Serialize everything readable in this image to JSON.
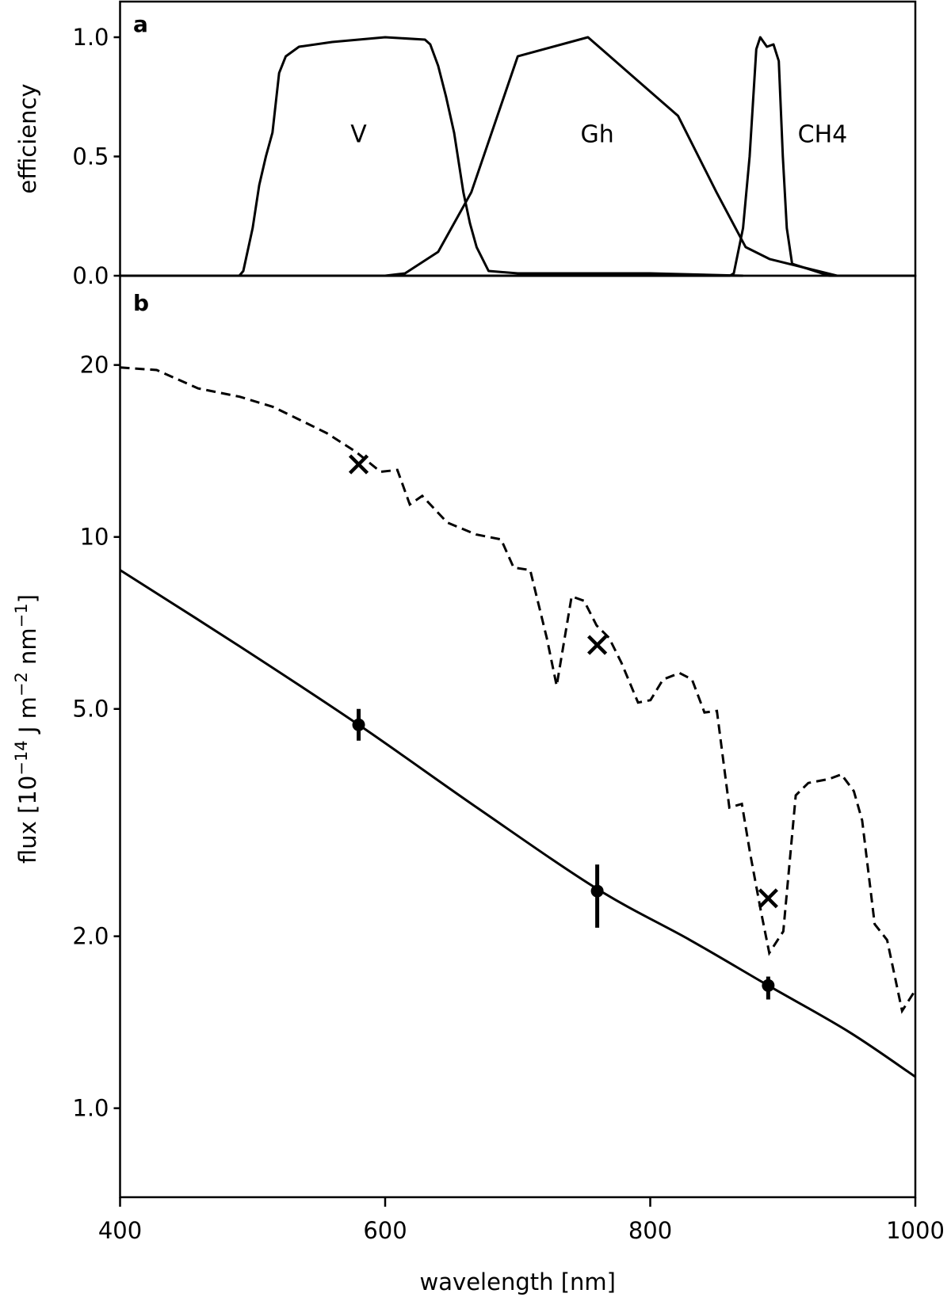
{
  "chart_data": [
    {
      "panel": "a",
      "type": "line",
      "xlabel": "",
      "ylabel": "efficiency",
      "xlim": [
        400,
        1000
      ],
      "ylim": [
        0,
        1.15
      ],
      "yticks": [
        "0.0",
        "0.5",
        "1.0"
      ],
      "ytick_values": [
        0,
        0.5,
        1.0
      ],
      "grid": false,
      "series": [
        {
          "name": "V",
          "x": [
            400,
            490,
            493,
            500,
            505,
            510,
            515,
            520,
            525,
            535,
            560,
            600,
            630,
            634,
            640,
            646,
            652,
            659,
            664,
            669,
            678,
            700,
            800,
            870
          ],
          "y": [
            0,
            0,
            0.02,
            0.2,
            0.38,
            0.5,
            0.6,
            0.85,
            0.92,
            0.96,
            0.98,
            1.0,
            0.99,
            0.97,
            0.88,
            0.75,
            0.6,
            0.35,
            0.22,
            0.12,
            0.02,
            0.01,
            0.01,
            0
          ]
        },
        {
          "name": "Gh",
          "x": [
            400,
            600,
            615,
            640,
            665,
            700,
            753,
            784,
            821,
            850,
            872,
            890,
            941,
            1000
          ],
          "y": [
            0,
            0,
            0.01,
            0.1,
            0.35,
            0.92,
            1.0,
            0.85,
            0.67,
            0.35,
            0.12,
            0.07,
            0,
            0
          ]
        },
        {
          "name": "CH4",
          "x": [
            400,
            860,
            863,
            870,
            875,
            880,
            883,
            888,
            893,
            897,
            900,
            903,
            907,
            935,
            1000
          ],
          "y": [
            0,
            0,
            0.01,
            0.2,
            0.5,
            0.95,
            1.0,
            0.96,
            0.97,
            0.9,
            0.5,
            0.2,
            0.05,
            0,
            0
          ]
        }
      ],
      "annotations": [
        {
          "text": "V",
          "x": 580,
          "y": 0.6
        },
        {
          "text": "Gh",
          "x": 760,
          "y": 0.6
        },
        {
          "text": "CH4",
          "x": 930,
          "y": 0.6
        }
      ]
    },
    {
      "panel": "b",
      "type": "line",
      "xlabel": "wavelength [nm]",
      "ylabel_parts": [
        "flux [10",
        "−14",
        " J m",
        "−2",
        " nm",
        "−1",
        "]"
      ],
      "xscale": "linear",
      "yscale": "log",
      "xlim": [
        400,
        1000
      ],
      "ylim": [
        0.7,
        28.7
      ],
      "xticks": [
        "400",
        "600",
        "800",
        "1000"
      ],
      "xtick_values": [
        400,
        600,
        800,
        1000
      ],
      "yticks": [
        "1.0",
        "2.0",
        "5.0",
        "10",
        "20"
      ],
      "ytick_values": [
        1,
        2,
        5,
        10,
        20
      ],
      "grid": false,
      "model": {
        "x": [
          400,
          490,
          580,
          670,
          760,
          830,
          889,
          950,
          1000
        ],
        "y": [
          8.75,
          6.44,
          4.69,
          3.35,
          2.42,
          1.97,
          1.64,
          1.36,
          1.135
        ]
      },
      "spectrum_dashed": {
        "x": [
          400,
          427.6,
          458.9,
          490.2,
          515.2,
          534,
          555.9,
          577.8,
          596.6,
          609.2,
          618.6,
          628,
          646.8,
          668.7,
          687.5,
          696.9,
          709.4,
          721.9,
          729.4,
          740.7,
          750.1,
          759.5,
          768.9,
          778.3,
          790.8,
          800.2,
          809.6,
          822.1,
          831.5,
          840.9,
          850.3,
          859.7,
          869.1,
          875.4,
          883.5,
          889.8,
          900.4,
          909.8,
          919.2,
          934.8,
          944.2,
          953.6,
          959.9,
          969.3,
          978.7,
          990,
          1000
        ],
        "y": [
          19.8,
          19.6,
          18.2,
          17.6,
          16.9,
          16.1,
          15.2,
          14.1,
          13.0,
          13.1,
          11.4,
          11.8,
          10.6,
          10.1,
          9.9,
          8.84,
          8.75,
          6.66,
          5.49,
          7.87,
          7.73,
          7.0,
          6.66,
          6.02,
          5.13,
          5.18,
          5.63,
          5.78,
          5.63,
          4.93,
          4.96,
          3.36,
          3.41,
          2.79,
          2.21,
          1.87,
          2.04,
          3.53,
          3.71,
          3.77,
          3.84,
          3.59,
          3.19,
          2.1,
          1.97,
          1.48,
          1.61
        ]
      },
      "measured_points": [
        {
          "x": 580,
          "y": 4.69,
          "ylow": 4.4,
          "yhigh": 5.0
        },
        {
          "x": 760,
          "y": 2.4,
          "ylow": 2.07,
          "yhigh": 2.67
        },
        {
          "x": 889,
          "y": 1.64,
          "ylow": 1.55,
          "yhigh": 1.7
        }
      ],
      "cross_points": [
        {
          "x": 580,
          "y": 13.4
        },
        {
          "x": 760,
          "y": 6.47
        },
        {
          "x": 889,
          "y": 2.33
        }
      ]
    }
  ]
}
